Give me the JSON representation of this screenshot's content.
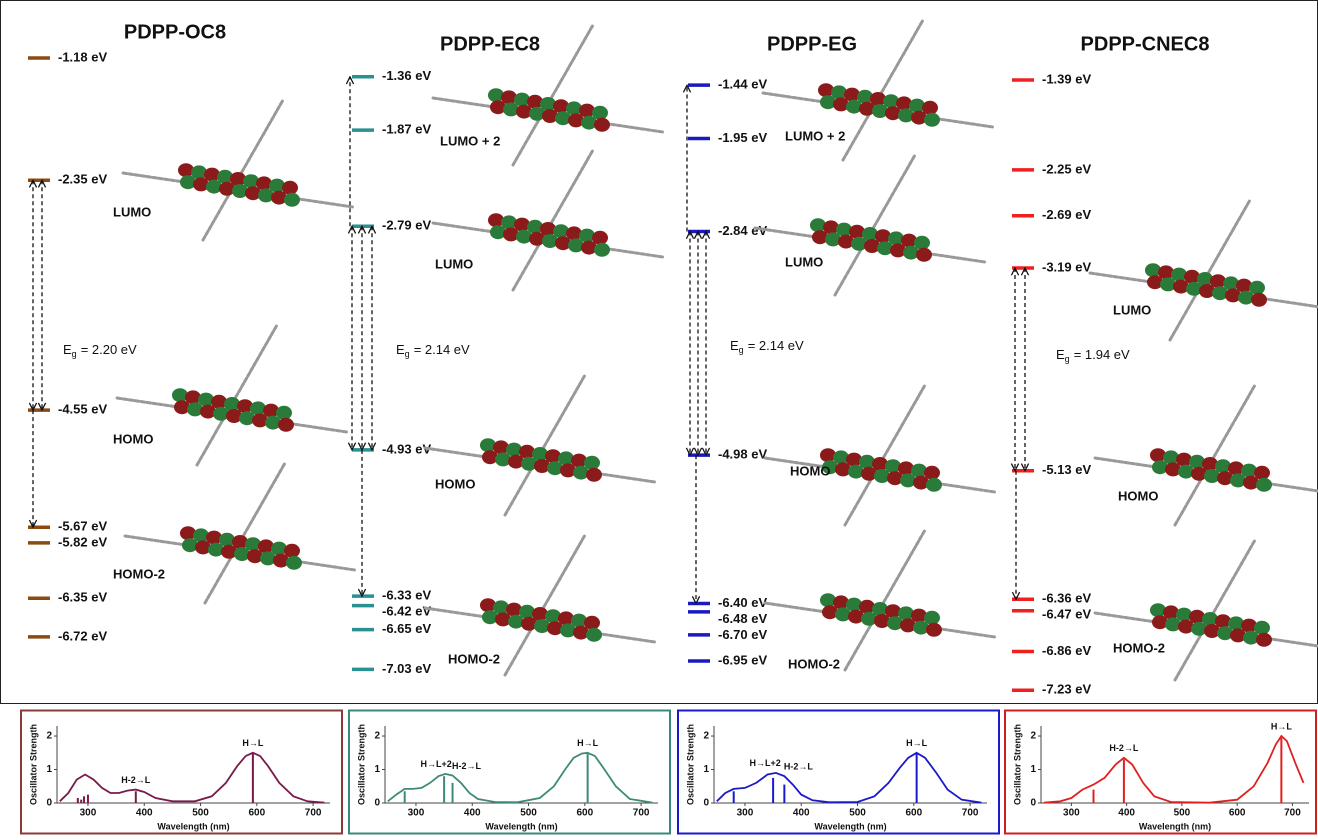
{
  "panels": [
    {
      "title": "PDPP-OC8",
      "color": "#8b4a12",
      "levels": [
        {
          "value": -1.18,
          "label": "-1.18 eV"
        },
        {
          "value": -2.35,
          "label": "-2.35 eV"
        },
        {
          "value": -4.55,
          "label": "-4.55 eV"
        },
        {
          "value": -5.67,
          "label": "-5.67 eV"
        },
        {
          "value": -5.82,
          "label": "-5.82 eV"
        },
        {
          "value": -6.35,
          "label": "-6.35 eV"
        },
        {
          "value": -6.72,
          "label": "-6.72 eV"
        }
      ],
      "orbitals": [
        "LUMO",
        "HOMO",
        "HOMO-2"
      ],
      "gap": {
        "symbol": "E",
        "subscript": "g",
        "text": "= 2.20 eV"
      },
      "spectrum": {
        "type": "line",
        "color": "#7a1a4a",
        "frame_color": "#8b3a3a",
        "xlabel": "Wavelength (nm)",
        "ylabel": "Oscillator Strength",
        "xlim": [
          245,
          730
        ],
        "ylim": [
          0,
          2.3
        ],
        "xticks": [
          300,
          400,
          500,
          600,
          700
        ],
        "yticks": [
          0,
          1,
          2
        ],
        "x": [
          250,
          265,
          280,
          295,
          310,
          325,
          340,
          355,
          370,
          385,
          400,
          420,
          450,
          490,
          520,
          545,
          565,
          580,
          593,
          606,
          620,
          640,
          665,
          690,
          720
        ],
        "values": [
          0.05,
          0.3,
          0.7,
          0.85,
          0.7,
          0.45,
          0.3,
          0.3,
          0.37,
          0.4,
          0.33,
          0.15,
          0.05,
          0.05,
          0.2,
          0.6,
          1.1,
          1.4,
          1.5,
          1.4,
          1.1,
          0.6,
          0.2,
          0.05,
          0.01
        ],
        "sticks": {
          "x": [
            282,
            288,
            293,
            300,
            385,
            593
          ],
          "values": [
            0.15,
            0.1,
            0.2,
            0.25,
            0.35,
            1.5
          ],
          "labels": [
            null,
            null,
            null,
            null,
            "H-2→L",
            "H→L"
          ]
        }
      }
    },
    {
      "title": "PDPP-EC8",
      "color": "#2a9090",
      "levels": [
        {
          "value": -1.36,
          "label": "-1.36 eV"
        },
        {
          "value": -1.87,
          "label": "-1.87 eV"
        },
        {
          "value": -2.79,
          "label": "-2.79 eV"
        },
        {
          "value": -4.93,
          "label": "-4.93 eV"
        },
        {
          "value": -6.33,
          "label": "-6.33 eV"
        },
        {
          "value": -6.42,
          "label": "-6.42 eV"
        },
        {
          "value": -6.65,
          "label": "-6.65 eV"
        },
        {
          "value": -7.03,
          "label": "-7.03 eV"
        }
      ],
      "orbitals": [
        "LUMO + 2",
        "LUMO",
        "HOMO",
        "HOMO-2"
      ],
      "gap": {
        "symbol": "E",
        "subscript": "g",
        "text": "= 2.14 eV"
      },
      "spectrum": {
        "type": "line",
        "color": "#3e8a78",
        "frame_color": "#3a8a7a",
        "xlabel": "Wavelength (nm)",
        "ylabel": "Oscillator Strength",
        "xlim": [
          245,
          730
        ],
        "ylim": [
          0,
          2.3
        ],
        "xticks": [
          300,
          400,
          500,
          600,
          700
        ],
        "yticks": [
          0,
          1,
          2
        ],
        "x": [
          250,
          265,
          280,
          295,
          310,
          325,
          340,
          352,
          365,
          380,
          395,
          410,
          440,
          480,
          520,
          545,
          565,
          580,
          595,
          605,
          618,
          635,
          655,
          680,
          720
        ],
        "values": [
          0.05,
          0.25,
          0.42,
          0.42,
          0.45,
          0.6,
          0.8,
          0.87,
          0.82,
          0.6,
          0.3,
          0.12,
          0.03,
          0.02,
          0.15,
          0.5,
          1.0,
          1.35,
          1.48,
          1.5,
          1.4,
          1.0,
          0.5,
          0.12,
          0.01
        ],
        "sticks": {
          "x": [
            280,
            350,
            365,
            605
          ],
          "values": [
            0.35,
            0.8,
            0.6,
            1.5
          ],
          "labels": [
            null,
            "H→L+2",
            "H-2→L",
            "H→L"
          ]
        }
      }
    },
    {
      "title": "PDPP-EG",
      "color": "#1a1ac0",
      "levels": [
        {
          "value": -1.44,
          "label": "-1.44 eV"
        },
        {
          "value": -1.95,
          "label": "-1.95 eV"
        },
        {
          "value": -2.84,
          "label": "-2.84 eV"
        },
        {
          "value": -4.98,
          "label": "-4.98 eV"
        },
        {
          "value": -6.4,
          "label": "-6.40 eV"
        },
        {
          "value": -6.48,
          "label": "-6.48 eV"
        },
        {
          "value": -6.7,
          "label": "-6.70 eV"
        },
        {
          "value": -6.95,
          "label": "-6.95 eV"
        }
      ],
      "orbitals": [
        "LUMO + 2",
        "LUMO",
        "HOMO",
        "HOMO-2"
      ],
      "gap": {
        "symbol": "E",
        "subscript": "g",
        "text": "= 2.14 eV"
      },
      "spectrum": {
        "type": "line",
        "color": "#1a1acc",
        "frame_color": "#1a1acc",
        "xlabel": "Wavelength (nm)",
        "ylabel": "Oscillator Strength",
        "xlim": [
          245,
          730
        ],
        "ylim": [
          0,
          2.3
        ],
        "xticks": [
          300,
          400,
          500,
          600,
          700
        ],
        "yticks": [
          0,
          1,
          2
        ],
        "x": [
          250,
          265,
          280,
          300,
          320,
          340,
          355,
          370,
          385,
          400,
          420,
          450,
          500,
          530,
          555,
          575,
          590,
          605,
          620,
          640,
          660,
          685,
          720
        ],
        "values": [
          0.05,
          0.3,
          0.42,
          0.45,
          0.6,
          0.85,
          0.9,
          0.8,
          0.55,
          0.25,
          0.08,
          0.02,
          0.03,
          0.2,
          0.6,
          1.05,
          1.35,
          1.5,
          1.35,
          0.9,
          0.4,
          0.1,
          0.01
        ],
        "sticks": {
          "x": [
            280,
            350,
            370,
            605
          ],
          "values": [
            0.35,
            0.75,
            0.55,
            1.5
          ],
          "labels": [
            null,
            "H→L+2",
            "H-2→L",
            "H→L"
          ]
        }
      }
    },
    {
      "title": "PDPP-CNEC8",
      "color": "#ee2020",
      "levels": [
        {
          "value": -1.39,
          "label": "-1.39 eV"
        },
        {
          "value": -2.25,
          "label": "-2.25 eV"
        },
        {
          "value": -2.69,
          "label": "-2.69 eV"
        },
        {
          "value": -3.19,
          "label": "-3.19 eV"
        },
        {
          "value": -5.13,
          "label": "-5.13 eV"
        },
        {
          "value": -6.36,
          "label": "-6.36 eV"
        },
        {
          "value": -6.47,
          "label": "-6.47 eV"
        },
        {
          "value": -6.86,
          "label": "-6.86 eV"
        },
        {
          "value": -7.23,
          "label": "-7.23 eV"
        }
      ],
      "orbitals": [
        "LUMO",
        "HOMO",
        "HOMO-2"
      ],
      "gap": {
        "symbol": "E",
        "subscript": "g",
        "text": "= 1.94 eV"
      },
      "spectrum": {
        "type": "line",
        "color": "#e02020",
        "frame_color": "#cc2020",
        "xlabel": "Wavelength (nm)",
        "ylabel": "Oscillator Strength",
        "xlim": [
          245,
          730
        ],
        "ylim": [
          0,
          2.3
        ],
        "xticks": [
          300,
          400,
          500,
          600,
          700
        ],
        "yticks": [
          0,
          1,
          2
        ],
        "x": [
          250,
          280,
          300,
          320,
          340,
          360,
          380,
          395,
          410,
          430,
          450,
          480,
          550,
          600,
          630,
          655,
          670,
          680,
          690,
          705,
          720
        ],
        "values": [
          0.01,
          0.05,
          0.15,
          0.4,
          0.55,
          0.75,
          1.15,
          1.35,
          1.15,
          0.6,
          0.2,
          0.03,
          0.01,
          0.1,
          0.5,
          1.2,
          1.75,
          2.0,
          1.85,
          1.2,
          0.6
        ],
        "sticks": {
          "x": [
            340,
            395,
            680
          ],
          "values": [
            0.4,
            1.3,
            1.95
          ],
          "labels": [
            null,
            "H-2→L",
            "H→L"
          ]
        }
      }
    }
  ]
}
